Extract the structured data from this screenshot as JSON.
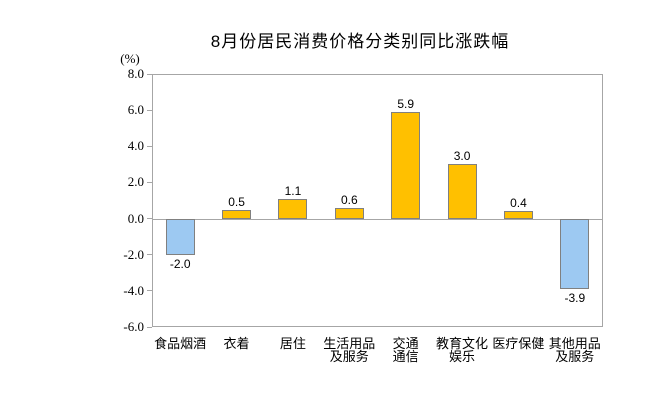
{
  "chart_data": {
    "type": "bar",
    "title": "8月份居民消费价格分类别同比涨跌幅",
    "unit_label": "(%)",
    "categories": [
      "食品烟酒",
      "衣着",
      "居住",
      "生活用品及服务",
      "交通通信",
      "教育文化娱乐",
      "医疗保健",
      "其他用品及服务"
    ],
    "category_lines": [
      [
        "食品烟酒"
      ],
      [
        "衣着"
      ],
      [
        "居住"
      ],
      [
        "生活用品",
        "及服务"
      ],
      [
        "交通",
        "通信"
      ],
      [
        "教育文化",
        "娱乐"
      ],
      [
        "医疗保健"
      ],
      [
        "其他用品",
        "及服务"
      ]
    ],
    "values": [
      -2.0,
      0.5,
      1.1,
      0.6,
      5.9,
      3.0,
      0.4,
      -3.9
    ],
    "value_labels": [
      "-2.0",
      "0.5",
      "1.1",
      "0.6",
      "5.9",
      "3.0",
      "0.4",
      "-3.9"
    ],
    "xlabel": "",
    "ylabel": "(%)",
    "ylim": [
      -6.0,
      8.0
    ],
    "ytick_step": 2.0,
    "ytick_labels": [
      "8.0",
      "6.0",
      "4.0",
      "2.0",
      "0.0",
      "-2.0",
      "-4.0",
      "-6.0"
    ],
    "grid": false,
    "legend": "none",
    "colors": {
      "positive_bar": "#FFC000",
      "negative_bar": "#9DC9F2",
      "bar_border": "#808080",
      "axis_border": "#A6A6A6",
      "text": "#000000",
      "background": "#FFFFFF"
    }
  }
}
